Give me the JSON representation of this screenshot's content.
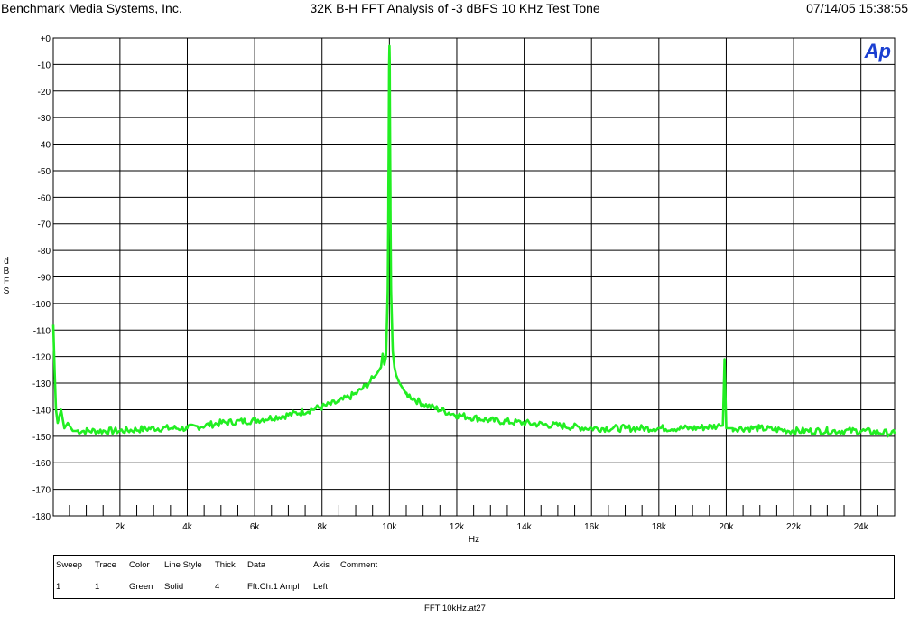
{
  "header": {
    "left": "Benchmark Media Systems, Inc.",
    "center": "32K B-H FFT Analysis of -3 dBFS 10 KHz Test Tone",
    "right": "07/14/05 15:38:55"
  },
  "logo": {
    "text": "Ap"
  },
  "colors": {
    "trace": "#22ee22",
    "grid": "#000000",
    "logo": "#1a3fd1"
  },
  "chart_data": {
    "type": "line",
    "xlabel": "Hz",
    "ylabel": "d B F S",
    "xlim": [
      20,
      25000
    ],
    "ylim": [
      -180,
      0
    ],
    "x_ticks": [
      2000,
      4000,
      6000,
      8000,
      10000,
      12000,
      14000,
      16000,
      18000,
      20000,
      22000,
      24000
    ],
    "x_tick_labels": [
      "2k",
      "4k",
      "6k",
      "8k",
      "10k",
      "12k",
      "14k",
      "16k",
      "18k",
      "20k",
      "22k",
      "24k"
    ],
    "y_ticks": [
      0,
      -10,
      -20,
      -30,
      -40,
      -50,
      -60,
      -70,
      -80,
      -90,
      -100,
      -110,
      -120,
      -130,
      -140,
      -150,
      -160,
      -170,
      -180
    ],
    "y_tick_labels": [
      "+0",
      "-10",
      "-20",
      "-30",
      "-40",
      "-50",
      "-60",
      "-70",
      "-80",
      "-90",
      "-100",
      "-110",
      "-120",
      "-130",
      "-140",
      "-150",
      "-160",
      "-170",
      "-180"
    ],
    "grid": true,
    "series": [
      {
        "x": [
          20,
          60,
          100,
          150,
          250,
          350,
          450,
          600,
          1000,
          2000,
          3000,
          4000,
          5000,
          6000,
          7000,
          8000,
          8500,
          9000,
          9300,
          9600,
          9750,
          9800,
          9850,
          9900,
          9950,
          9970,
          9990,
          10000,
          10010,
          10030,
          10050,
          10100,
          10150,
          10200,
          10300,
          10500,
          11000,
          12000,
          13000,
          14000,
          15000,
          16000,
          17000,
          18000,
          19000,
          19900,
          19950,
          20000,
          20050,
          20100,
          21000,
          22000,
          23000,
          24000,
          25000
        ],
        "y": [
          -108,
          -125,
          -140,
          -145,
          -140,
          -147,
          -145,
          -148,
          -148,
          -148,
          -147,
          -147,
          -145,
          -144,
          -142,
          -139,
          -137,
          -134,
          -131,
          -127,
          -124,
          -119,
          -123,
          -120,
          -95,
          -60,
          -10,
          -3,
          -10,
          -60,
          -95,
          -118,
          -124,
          -127,
          -130,
          -134,
          -138,
          -142,
          -144,
          -145,
          -146,
          -147,
          -147,
          -147,
          -147,
          -146,
          -121,
          -147,
          -147,
          -147,
          -147,
          -148,
          -148,
          -148,
          -149
        ]
      }
    ]
  },
  "legend_table": {
    "headers": [
      "Sweep",
      "Trace",
      "Color",
      "Line Style",
      "Thick",
      "Data",
      "Axis",
      "Comment"
    ],
    "rows": [
      [
        "1",
        "1",
        "Green",
        "Solid",
        "4",
        "Fft.Ch.1 Ampl",
        "Left",
        ""
      ]
    ]
  },
  "footer": "FFT 10kHz.at27"
}
